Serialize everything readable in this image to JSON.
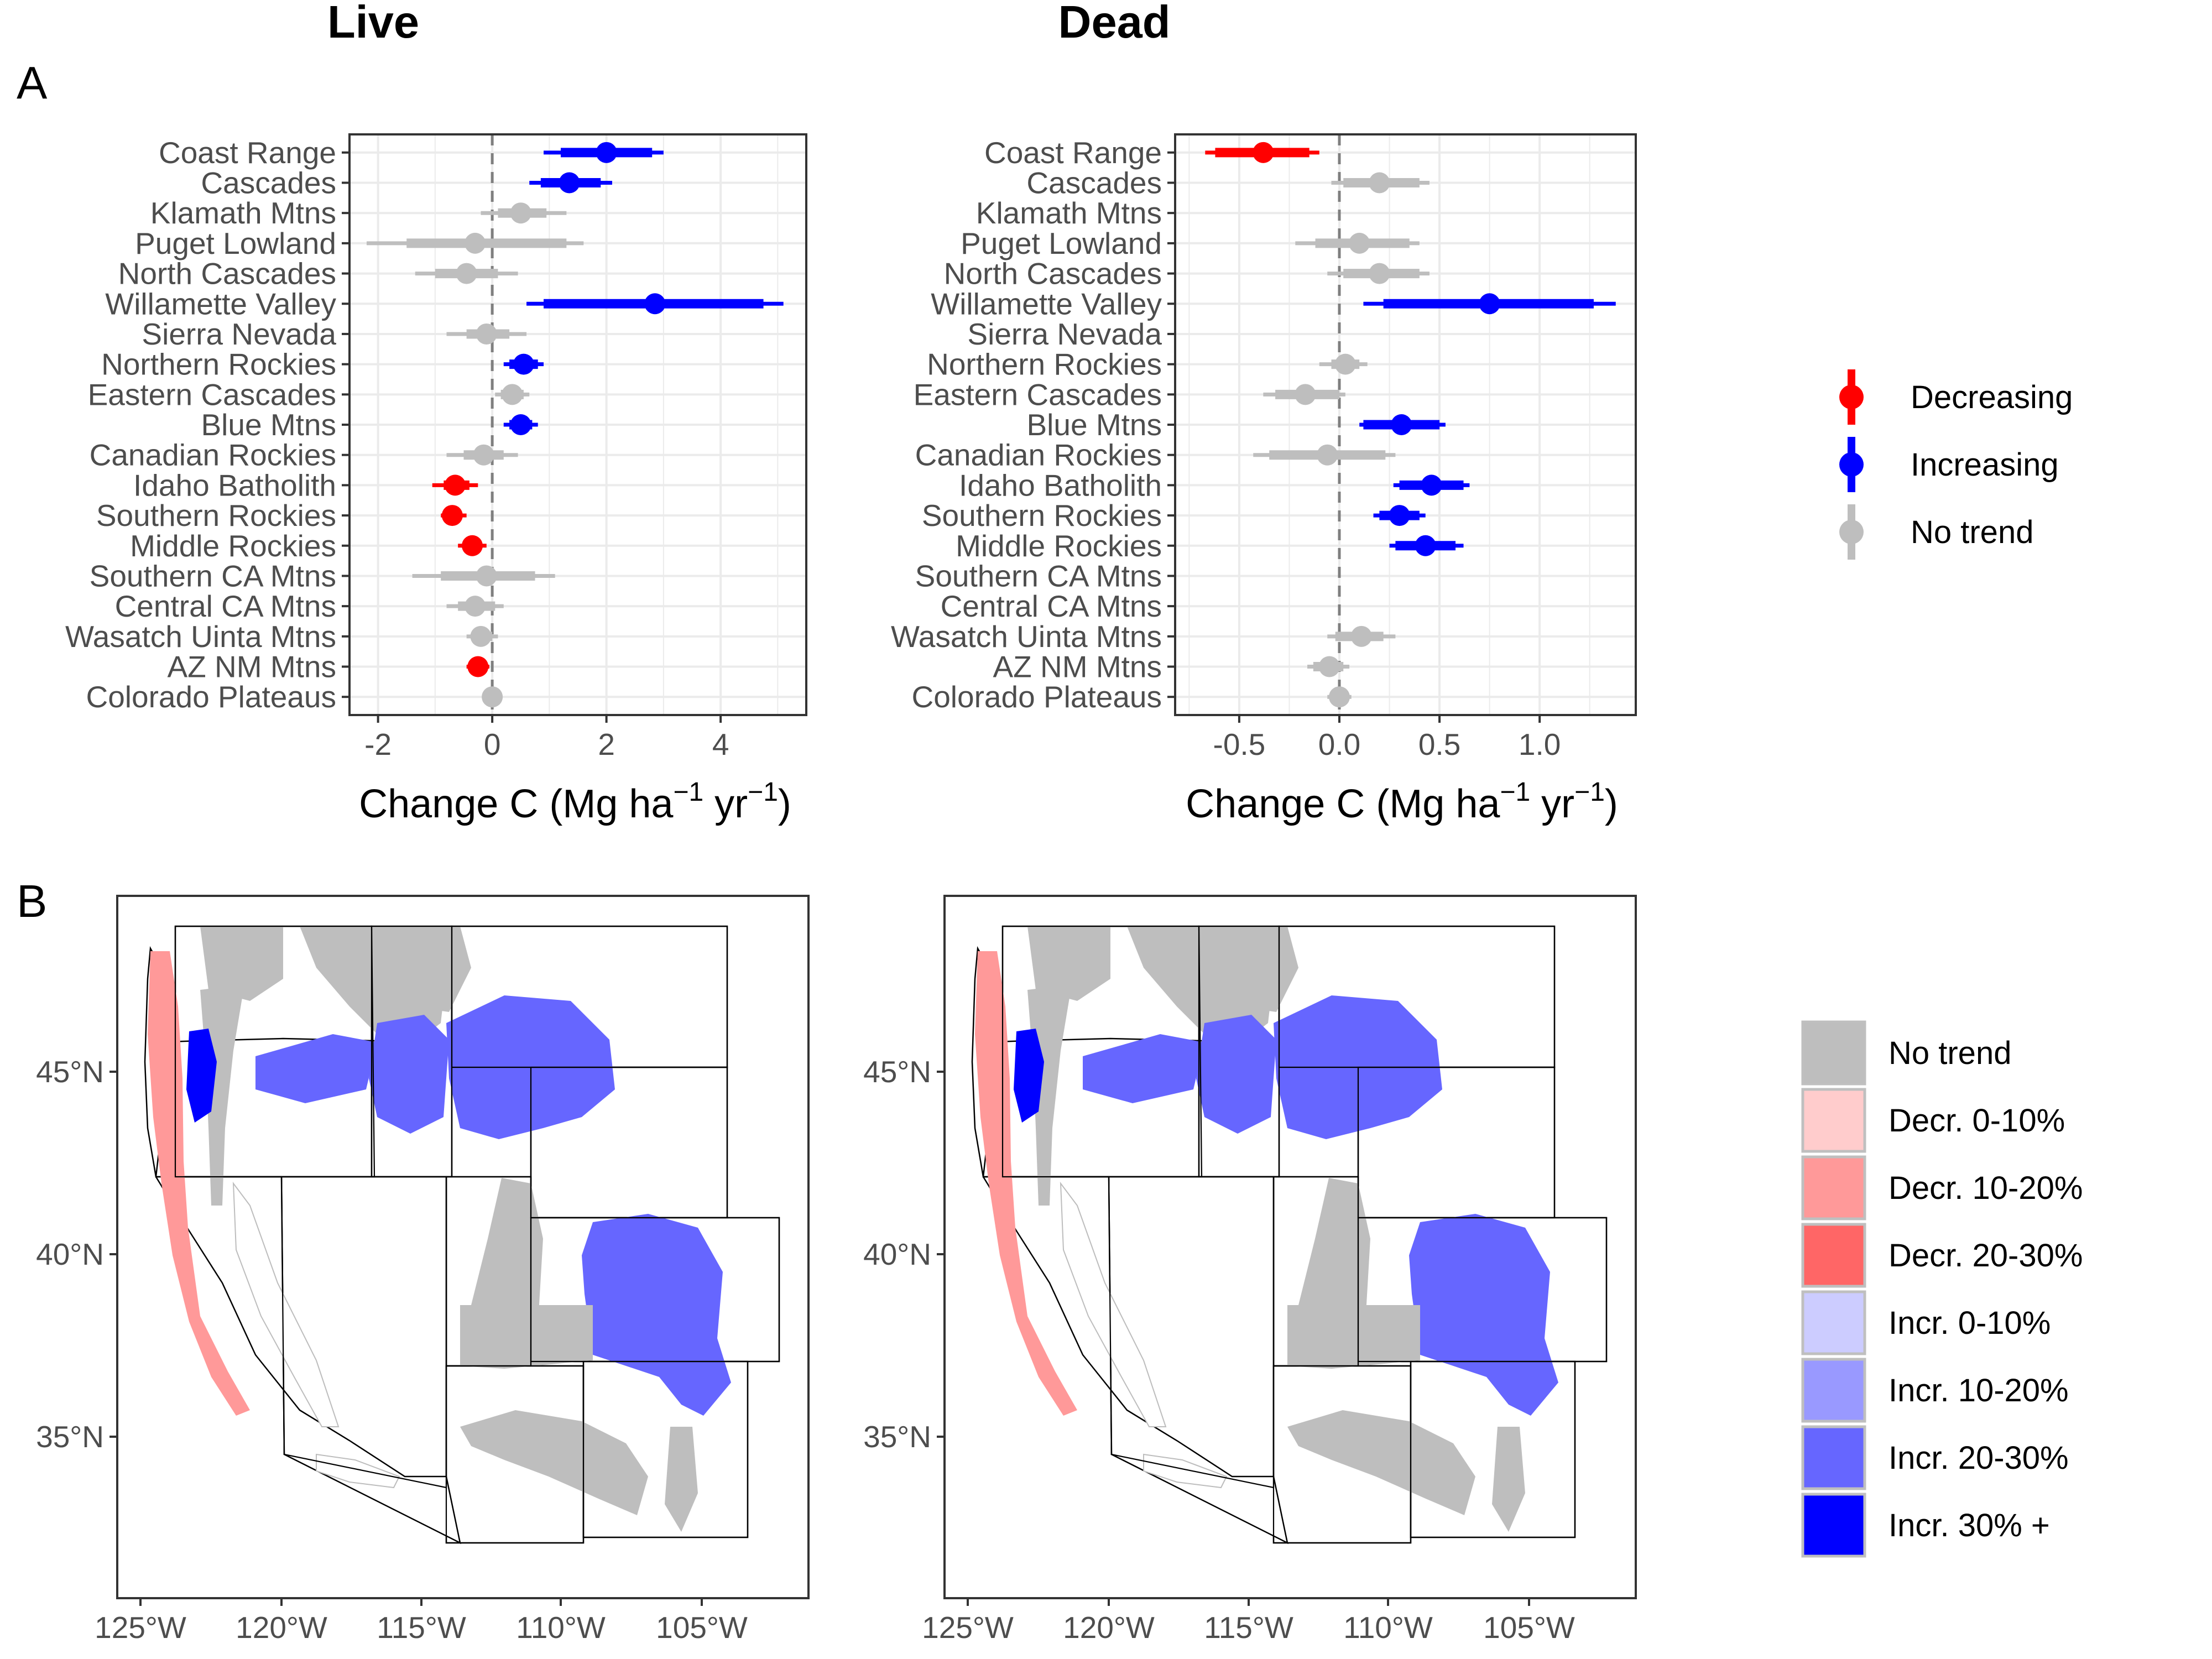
{
  "panel_letters": [
    "A",
    "B"
  ],
  "colors": {
    "decreasing": "#ff0000",
    "increasing": "#0000ff",
    "no_trend": "#bebebe",
    "grid": "#ebebeb",
    "fill_no_trend": "#bebebe",
    "fill_decr_0_10": "#ffcccc",
    "fill_decr_10_20": "#ff9999",
    "fill_decr_20_30": "#ff6666",
    "fill_incr_0_10": "#ccccff",
    "fill_incr_10_20": "#9999ff",
    "fill_incr_20_30": "#6666ff",
    "fill_incr_30_plus": "#0000ff"
  },
  "chart_data": [
    {
      "type": "forest",
      "title": "Live",
      "xlabel": "Change C (Mg  ha",
      "xlabel_sup1": "−1",
      "xlabel_mid": " yr",
      "xlabel_sup2": "−1",
      "xlabel_end": ")",
      "xlim": [
        -2.5,
        5.5
      ],
      "xticks": [
        -2,
        0,
        2,
        4
      ],
      "xtick_labels": [
        "-2",
        "0",
        "2",
        "4"
      ],
      "categories": [
        "Coast Range",
        "Cascades",
        "Klamath Mtns",
        "Puget Lowland",
        "North Cascades",
        "Willamette Valley",
        "Sierra Nevada",
        "Northern Rockies",
        "Eastern Cascades",
        "Blue Mtns",
        "Canadian Rockies",
        "Idaho Batholith",
        "Southern Rockies",
        "Middle Rockies",
        "Southern CA Mtns",
        "Central CA Mtns",
        "Wasatch Uinta Mtns",
        "AZ NM Mtns",
        "Colorado Plateaus"
      ],
      "estimates": [
        2.0,
        1.35,
        0.5,
        -0.3,
        -0.45,
        2.85,
        -0.1,
        0.55,
        0.35,
        0.5,
        -0.15,
        -0.65,
        -0.7,
        -0.35,
        -0.1,
        -0.3,
        -0.2,
        -0.25,
        0.0
      ],
      "inner_low": [
        1.2,
        0.85,
        0.1,
        -1.5,
        -1.0,
        0.9,
        -0.45,
        0.3,
        0.15,
        0.3,
        -0.5,
        -0.85,
        -0.8,
        -0.5,
        -0.9,
        -0.6,
        -0.35,
        -0.35,
        -0.05
      ],
      "inner_high": [
        2.8,
        1.9,
        0.95,
        1.3,
        0.1,
        4.75,
        0.3,
        0.8,
        0.55,
        0.7,
        0.2,
        -0.4,
        -0.55,
        -0.2,
        0.75,
        0.05,
        0.0,
        -0.15,
        0.05
      ],
      "outer_low": [
        0.9,
        0.65,
        -0.2,
        -2.2,
        -1.35,
        0.6,
        -0.8,
        0.2,
        0.05,
        0.2,
        -0.8,
        -1.05,
        -0.9,
        -0.6,
        -1.4,
        -0.8,
        -0.45,
        -0.45,
        -0.1
      ],
      "outer_high": [
        3.0,
        2.1,
        1.3,
        1.6,
        0.45,
        5.1,
        0.6,
        0.9,
        0.65,
        0.8,
        0.45,
        -0.25,
        -0.45,
        -0.1,
        1.1,
        0.2,
        0.1,
        -0.05,
        0.1
      ],
      "trend": [
        "increasing",
        "increasing",
        "no_trend",
        "no_trend",
        "no_trend",
        "increasing",
        "no_trend",
        "increasing",
        "no_trend",
        "increasing",
        "no_trend",
        "decreasing",
        "decreasing",
        "decreasing",
        "no_trend",
        "no_trend",
        "no_trend",
        "decreasing",
        "no_trend"
      ],
      "vline": 0,
      "grid": true
    },
    {
      "type": "forest",
      "title": "Dead",
      "xlabel": "Change C (Mg  ha",
      "xlabel_sup1": "−1",
      "xlabel_mid": " yr",
      "xlabel_sup2": "−1",
      "xlabel_end": ")",
      "xlim": [
        -0.82,
        1.48
      ],
      "xticks": [
        -0.5,
        0.0,
        0.5,
        1.0
      ],
      "xtick_labels": [
        "-0.5",
        "0.0",
        "0.5",
        "1.0"
      ],
      "categories": [
        "Coast Range",
        "Cascades",
        "Klamath Mtns",
        "Puget Lowland",
        "North Cascades",
        "Willamette Valley",
        "Sierra Nevada",
        "Northern Rockies",
        "Eastern Cascades",
        "Blue Mtns",
        "Canadian Rockies",
        "Idaho Batholith",
        "Southern Rockies",
        "Middle Rockies",
        "Southern CA Mtns",
        "Central CA Mtns",
        "Wasatch Uinta Mtns",
        "AZ NM Mtns",
        "Colorado Plateaus"
      ],
      "estimates": [
        -0.38,
        0.2,
        null,
        0.1,
        0.2,
        0.75,
        null,
        0.03,
        -0.17,
        0.31,
        -0.06,
        0.46,
        0.3,
        0.43,
        null,
        null,
        0.11,
        -0.05,
        0.0
      ],
      "inner_low": [
        -0.62,
        0.02,
        null,
        -0.12,
        0.02,
        0.22,
        null,
        -0.04,
        -0.32,
        0.12,
        -0.35,
        0.3,
        0.2,
        0.28,
        null,
        null,
        -0.02,
        -0.13,
        -0.04
      ],
      "inner_high": [
        -0.15,
        0.4,
        null,
        0.35,
        0.4,
        1.27,
        null,
        0.1,
        0.0,
        0.5,
        0.23,
        0.62,
        0.4,
        0.58,
        null,
        null,
        0.22,
        0.02,
        0.04
      ],
      "outer_low": [
        -0.67,
        -0.04,
        null,
        -0.22,
        -0.06,
        0.12,
        null,
        -0.1,
        -0.38,
        0.1,
        -0.43,
        0.27,
        0.17,
        0.25,
        null,
        null,
        -0.06,
        -0.16,
        -0.06
      ],
      "outer_high": [
        -0.1,
        0.45,
        null,
        0.4,
        0.45,
        1.38,
        null,
        0.14,
        0.03,
        0.53,
        0.28,
        0.65,
        0.43,
        0.62,
        null,
        null,
        0.28,
        0.05,
        0.06
      ],
      "trend": [
        "decreasing",
        "no_trend",
        "no_trend",
        "no_trend",
        "no_trend",
        "increasing",
        "no_trend",
        "no_trend",
        "no_trend",
        "increasing",
        "no_trend",
        "increasing",
        "increasing",
        "increasing",
        "no_trend",
        "no_trend",
        "no_trend",
        "no_trend",
        "no_trend"
      ],
      "vline": 0,
      "grid": true
    },
    {
      "type": "map",
      "panel": "B-live",
      "lon_ticks": [
        "125°W",
        "120°W",
        "115°W",
        "110°W",
        "105°W"
      ],
      "lat_ticks": [
        "45°N",
        "40°N",
        "35°N"
      ]
    },
    {
      "type": "map",
      "panel": "B-dead",
      "lon_ticks": [
        "125°W",
        "120°W",
        "115°W",
        "110°W",
        "105°W"
      ],
      "lat_ticks": [
        "45°N",
        "40°N",
        "35°N"
      ]
    }
  ],
  "legend_trend": [
    {
      "label": "Decreasing",
      "color": "#ff0000"
    },
    {
      "label": "Increasing",
      "color": "#0000ff"
    },
    {
      "label": "No trend",
      "color": "#bebebe"
    }
  ],
  "legend_fill": [
    {
      "label": "No trend",
      "color": "#bebebe"
    },
    {
      "label": "Decr. 0-10%",
      "color": "#ffcccc"
    },
    {
      "label": "Decr. 10-20%",
      "color": "#ff9999"
    },
    {
      "label": "Decr. 20-30%",
      "color": "#ff6666"
    },
    {
      "label": "Incr. 0-10%",
      "color": "#ccccff"
    },
    {
      "label": "Incr. 10-20%",
      "color": "#9999ff"
    },
    {
      "label": "Incr. 20-30%",
      "color": "#6666ff"
    },
    {
      "label": "Incr. 30% +",
      "color": "#0000ff"
    }
  ]
}
